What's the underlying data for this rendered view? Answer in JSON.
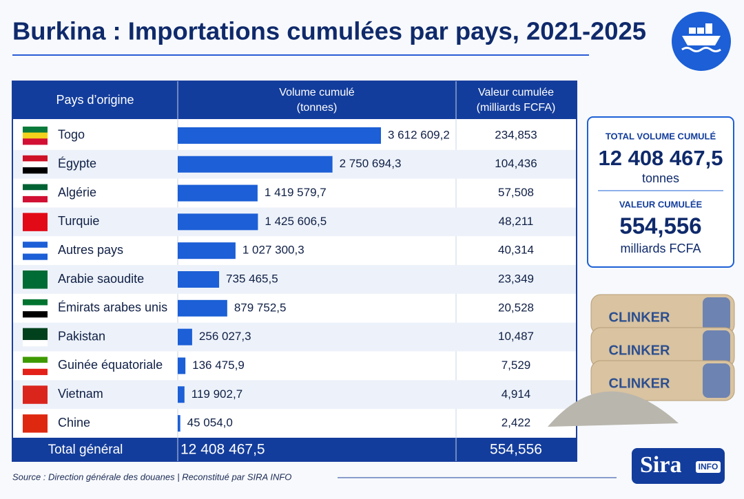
{
  "header": {
    "title": "Burkina : Importations cumulées par pays, 2021-2025"
  },
  "table": {
    "columns": [
      "Pays d’origine",
      "Volume cumulé\n(tonnes)",
      "Valeur cumulée\n(milliards FCFA)"
    ],
    "rows": [
      {
        "country": "Togo",
        "volume": 3612609.2,
        "volume_label": "3 612 609,2",
        "value": "234,853"
      },
      {
        "country": "Égypte",
        "volume": 2750694.3,
        "volume_label": "2 750 694,3",
        "value": "104,436"
      },
      {
        "country": "Algérie",
        "volume": 1419579.7,
        "volume_label": "1 419 579,7",
        "value": "57,508"
      },
      {
        "country": "Turquie",
        "volume": 1425606.5,
        "volume_label": "1 425 606,5",
        "value": "48,211"
      },
      {
        "country": "Autres pays",
        "volume": 1027300.3,
        "volume_label": "1 027 300,3",
        "value": "40,314"
      },
      {
        "country": "Arabie saoudite",
        "volume": 735465.5,
        "volume_label": "735 465,5",
        "value": "23,349"
      },
      {
        "country": "Émirats arabes unis",
        "volume": 879752.5,
        "volume_label": "879 752,5",
        "value": "20,528"
      },
      {
        "country": "Pakistan",
        "volume": 256027.3,
        "volume_label": "256 027,3",
        "value": "10,487"
      },
      {
        "country": "Guinée équatoriale",
        "volume": 136475.9,
        "volume_label": "136 475,9",
        "value": "7,529"
      },
      {
        "country": "Vietnam",
        "volume": 119902.7,
        "volume_label": "119 902,7",
        "value": "4,914"
      },
      {
        "country": "Chine",
        "volume": 45054.0,
        "volume_label": "45 054,0",
        "value": "2,422"
      }
    ],
    "total": {
      "label": "Total général",
      "volume": "12 408 467,5",
      "value": "554,556"
    }
  },
  "summary": {
    "volume_title": "TOTAL VOLUME CUMULÉ",
    "volume": "12 408 467,5",
    "volume_unit": "tonnes",
    "value_title": "VALEUR CUMULÉE",
    "value": "554,556",
    "value_unit": "milliards FCFA"
  },
  "bag_labels": [
    "CLINKER",
    "CLINKER",
    "CLINKER"
  ],
  "logo": {
    "name": "Sira",
    "tag": "INFO"
  },
  "source": "Source : Direction générale des douanes | Reconstitué par SIRA INFO"
}
